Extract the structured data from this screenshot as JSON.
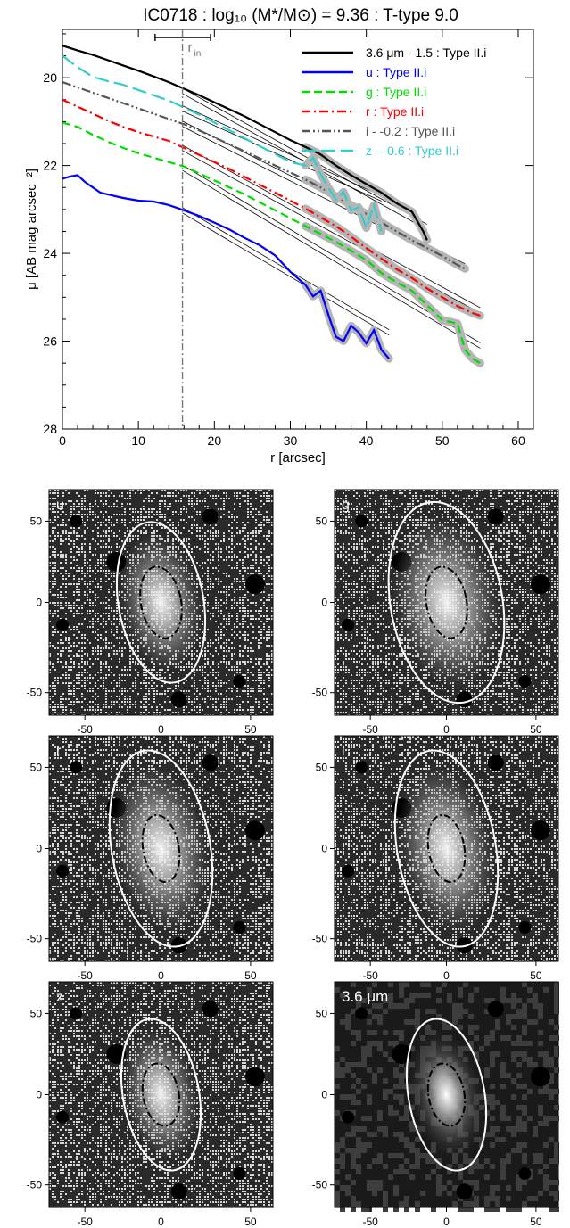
{
  "figure": {
    "title": "IC0718 : log₁₀ (M*/M⊙) = 9.36 : T-type 9.0"
  },
  "chart_data": [
    {
      "type": "line",
      "title": "IC0718 : log₁₀ (M*/M⊙) = 9.36 : T-type 9.0",
      "xlabel": "r [arcsec]",
      "ylabel": "μ [AB mag arcsec⁻²]",
      "xlim": [
        0,
        62
      ],
      "ylim": [
        28,
        18.9
      ],
      "y_inverted": true,
      "xticks": [
        0,
        10,
        20,
        30,
        40,
        50,
        60
      ],
      "yticks": [
        20,
        22,
        24,
        26,
        28
      ],
      "grid": false,
      "legend_position": "top-right",
      "r_in": {
        "label": "r",
        "sub": "in",
        "value": 15.8,
        "range": [
          12.2,
          19.5
        ]
      },
      "series": [
        {
          "name": "3.6 μm - 1.5 : Type II.i",
          "color": "#000000",
          "dash": "solid",
          "x": [
            0,
            2,
            4,
            6,
            8,
            10,
            12,
            14,
            16,
            18,
            20,
            22,
            24,
            26,
            28,
            30,
            32,
            34,
            36,
            38,
            40,
            42,
            44,
            46,
            47.5,
            48
          ],
          "y": [
            19.27,
            19.38,
            19.48,
            19.6,
            19.72,
            19.84,
            19.97,
            20.1,
            20.25,
            20.4,
            20.56,
            20.72,
            20.88,
            21.06,
            21.24,
            21.42,
            21.58,
            21.75,
            22.0,
            22.22,
            22.42,
            22.62,
            22.86,
            23.05,
            23.5,
            23.7
          ],
          "fit_x": [
            15.8,
            48
          ],
          "fit_y": [
            20.3,
            23.4
          ]
        },
        {
          "name": "u : Type II.i",
          "color": "#0000ff",
          "dash": "solid",
          "x": [
            0,
            1,
            2,
            3,
            4,
            5,
            6,
            8,
            10,
            12,
            14,
            16,
            18,
            20,
            22,
            24,
            26,
            28,
            30,
            32,
            33,
            34,
            35,
            36,
            37,
            38,
            39,
            40,
            41,
            42,
            43
          ],
          "y": [
            22.3,
            22.25,
            22.22,
            22.38,
            22.5,
            22.62,
            22.66,
            22.74,
            22.8,
            22.82,
            22.9,
            23.02,
            23.15,
            23.3,
            23.46,
            23.65,
            23.82,
            24.05,
            24.42,
            24.72,
            24.98,
            24.85,
            25.4,
            25.9,
            26.0,
            25.65,
            25.8,
            26.05,
            25.75,
            26.2,
            26.4
          ],
          "fit_x": [
            15.8,
            43
          ],
          "fit_y": [
            23.02,
            25.8
          ]
        },
        {
          "name": "g : Type II.i",
          "color": "#00dd00",
          "dash": "dash",
          "x": [
            0,
            2,
            4,
            6,
            8,
            10,
            12,
            14,
            16,
            18,
            20,
            22,
            24,
            26,
            28,
            30,
            32,
            34,
            36,
            38,
            40,
            42,
            44,
            46,
            48,
            50,
            52,
            53,
            54,
            55
          ],
          "y": [
            21.02,
            21.12,
            21.3,
            21.46,
            21.6,
            21.72,
            21.82,
            21.92,
            22.02,
            22.18,
            22.34,
            22.5,
            22.66,
            22.84,
            23.02,
            23.2,
            23.38,
            23.56,
            23.74,
            23.94,
            24.15,
            24.45,
            24.66,
            24.85,
            25.18,
            25.52,
            25.6,
            26.2,
            26.4,
            26.5
          ],
          "fit_x": [
            15.8,
            55
          ],
          "fit_y": [
            22.05,
            26.1
          ]
        },
        {
          "name": "r : Type II.i",
          "color": "#ff0000",
          "dash": "dashdot",
          "x": [
            0,
            2,
            4,
            6,
            8,
            10,
            12,
            14,
            16,
            18,
            20,
            22,
            24,
            26,
            28,
            30,
            32,
            34,
            36,
            38,
            40,
            42,
            44,
            46,
            48,
            50,
            52,
            54,
            55
          ],
          "y": [
            20.5,
            20.66,
            20.82,
            20.98,
            21.12,
            21.24,
            21.34,
            21.44,
            21.6,
            21.76,
            21.92,
            22.08,
            22.26,
            22.44,
            22.62,
            22.8,
            22.98,
            23.18,
            23.38,
            23.62,
            23.88,
            24.12,
            24.36,
            24.56,
            24.8,
            25.0,
            25.2,
            25.36,
            25.42
          ],
          "fit_x": [
            15.8,
            55
          ],
          "fit_y": [
            21.6,
            25.3
          ]
        },
        {
          "name": "i - -0.2 : Type II.i",
          "color": "#555555",
          "dash": "dashdotdot",
          "x": [
            0,
            2,
            4,
            6,
            8,
            10,
            12,
            14,
            16,
            18,
            20,
            22,
            24,
            26,
            28,
            30,
            32,
            34,
            36,
            38,
            40,
            42,
            44,
            46,
            48,
            50,
            52,
            53
          ],
          "y": [
            20.1,
            20.22,
            20.34,
            20.46,
            20.58,
            20.7,
            20.82,
            20.94,
            21.06,
            21.2,
            21.36,
            21.52,
            21.68,
            21.84,
            22.0,
            22.16,
            22.32,
            22.5,
            22.7,
            22.9,
            23.1,
            23.3,
            23.5,
            23.7,
            23.88,
            24.06,
            24.26,
            24.35
          ],
          "fit_x": [
            15.8,
            53
          ],
          "fit_y": [
            21.05,
            24.3
          ]
        },
        {
          "name": "z - -0.6 : Type II.i",
          "color": "#33cccc",
          "dash": "longdash",
          "x": [
            0,
            2,
            4,
            6,
            8,
            10,
            12,
            14,
            16,
            18,
            20,
            22,
            24,
            26,
            28,
            30,
            32,
            33,
            34,
            35,
            36,
            37,
            38,
            39,
            40,
            41,
            42
          ],
          "y": [
            19.5,
            19.76,
            19.98,
            20.08,
            20.16,
            20.28,
            20.4,
            20.52,
            20.68,
            20.84,
            21.02,
            21.2,
            21.38,
            21.56,
            21.74,
            21.92,
            22.0,
            21.82,
            22.2,
            22.5,
            22.78,
            22.6,
            23.02,
            22.95,
            23.42,
            22.9,
            23.5
          ],
          "fit_x": [
            15.8,
            42
          ],
          "fit_y": [
            20.7,
            22.75
          ]
        }
      ]
    },
    {
      "type": "image",
      "panels": [
        {
          "label": "u"
        },
        {
          "label": "g"
        },
        {
          "label": "r"
        },
        {
          "label": "i"
        },
        {
          "label": "z"
        },
        {
          "label": "3.6 μm"
        }
      ],
      "xticks": [
        "-50",
        "0",
        "50"
      ],
      "yticks": [
        "50",
        "0",
        "-50"
      ]
    }
  ]
}
